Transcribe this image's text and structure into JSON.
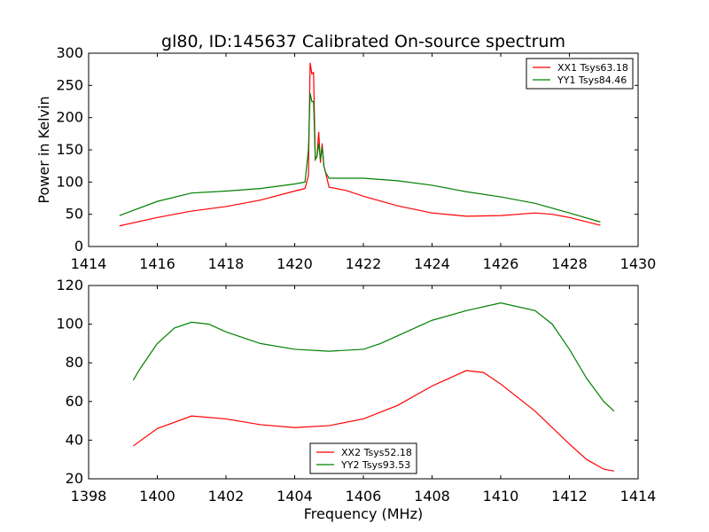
{
  "chart_data": [
    {
      "type": "line",
      "title": "gl80, ID:145637 Calibrated On-source spectrum",
      "xlabel": "",
      "ylabel": "Power in Kelvin",
      "xlim": [
        1414,
        1430
      ],
      "ylim": [
        0,
        300
      ],
      "xticks": [
        1414,
        1416,
        1418,
        1420,
        1422,
        1424,
        1426,
        1428,
        1430
      ],
      "yticks": [
        0,
        50,
        100,
        150,
        200,
        250,
        300
      ],
      "legend_position": "top-right",
      "series": [
        {
          "name": "XX1 Tsys63.18",
          "color": "#ff0000",
          "x": [
            1414.9,
            1416,
            1417,
            1418,
            1419,
            1420,
            1420.3,
            1420.4,
            1420.45,
            1420.5,
            1420.55,
            1420.6,
            1420.65,
            1420.7,
            1420.75,
            1420.8,
            1420.85,
            1420.9,
            1421,
            1421.5,
            1422,
            1423,
            1424,
            1425,
            1426,
            1427,
            1427.5,
            1428,
            1428.9
          ],
          "y": [
            32,
            45,
            55,
            62,
            72,
            86,
            90,
            110,
            285,
            268,
            270,
            135,
            140,
            178,
            130,
            160,
            125,
            115,
            92,
            87,
            78,
            63,
            52,
            47,
            48,
            52,
            50,
            45,
            33
          ]
        },
        {
          "name": "YY1 Tsys84.46",
          "color": "#008000",
          "x": [
            1414.9,
            1416,
            1417,
            1418,
            1419,
            1420,
            1420.3,
            1420.4,
            1420.45,
            1420.5,
            1420.55,
            1420.6,
            1420.65,
            1420.7,
            1420.75,
            1420.8,
            1420.85,
            1420.9,
            1421,
            1422,
            1423,
            1424,
            1425,
            1426,
            1427,
            1428,
            1428.9
          ],
          "y": [
            48,
            70,
            83,
            86,
            90,
            97,
            100,
            150,
            238,
            225,
            225,
            135,
            140,
            160,
            135,
            155,
            125,
            115,
            106,
            106,
            102,
            95,
            85,
            77,
            67,
            52,
            38
          ]
        }
      ]
    },
    {
      "type": "line",
      "title": "",
      "xlabel": "Frequency (MHz)",
      "ylabel": "",
      "xlim": [
        1398,
        1414
      ],
      "ylim": [
        20,
        120
      ],
      "xticks": [
        1398,
        1400,
        1402,
        1404,
        1406,
        1408,
        1410,
        1412,
        1414
      ],
      "yticks": [
        20,
        40,
        60,
        80,
        100,
        120
      ],
      "legend_position": "bottom-center",
      "series": [
        {
          "name": "XX2 Tsys52.18",
          "color": "#ff0000",
          "x": [
            1399.3,
            1400,
            1401,
            1402,
            1403,
            1404,
            1405,
            1406,
            1407,
            1408,
            1409,
            1409.5,
            1410,
            1411,
            1412,
            1412.5,
            1413,
            1413.3
          ],
          "y": [
            37,
            46,
            52.5,
            51,
            48,
            46.5,
            47.5,
            51,
            58,
            68,
            76,
            75,
            69,
            55,
            38,
            30,
            25,
            24
          ]
        },
        {
          "name": "YY2 Tsys93.53",
          "color": "#008000",
          "x": [
            1399.3,
            1399.5,
            1400,
            1400.5,
            1401,
            1401.5,
            1402,
            1403,
            1404,
            1405,
            1406,
            1406.5,
            1407,
            1408,
            1409,
            1410,
            1411,
            1411.5,
            1412,
            1412.5,
            1413,
            1413.3
          ],
          "y": [
            71,
            77,
            90,
            98,
            101,
            100,
            96,
            90,
            87,
            86,
            87,
            90,
            94,
            102,
            107,
            111,
            107,
            100,
            87,
            72,
            60,
            55
          ]
        }
      ]
    }
  ]
}
